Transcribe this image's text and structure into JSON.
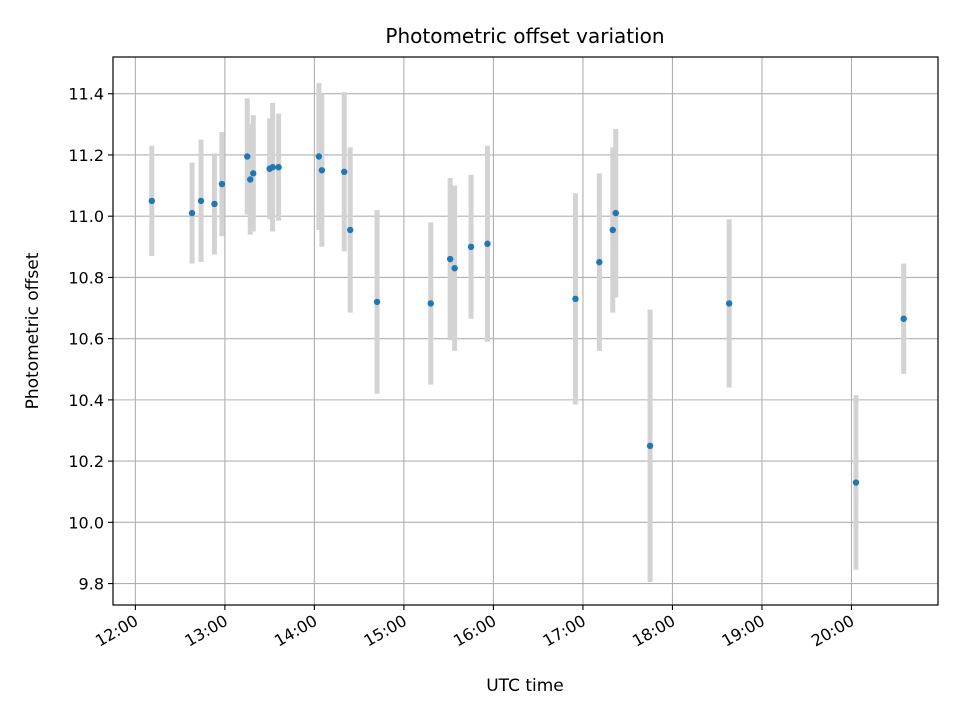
{
  "chart_data": {
    "type": "scatter",
    "title": "Photometric offset variation",
    "xlabel": "UTC time",
    "ylabel": "Photometric offset",
    "x_unit": "hours UTC",
    "xlim": [
      "11:45",
      "20:58"
    ],
    "ylim": [
      9.73,
      11.52
    ],
    "x_ticks": [
      "12:00",
      "13:00",
      "14:00",
      "15:00",
      "16:00",
      "17:00",
      "18:00",
      "19:00",
      "20:00"
    ],
    "y_ticks": [
      "9.8",
      "10.0",
      "10.2",
      "10.4",
      "10.6",
      "10.8",
      "11.0",
      "11.2",
      "11.4"
    ],
    "grid": true,
    "colors": {
      "point": "#1f77b4",
      "errorbar": "#d3d3d3",
      "grid": "#b0b0b0"
    },
    "points": [
      {
        "x": "12:11",
        "y": 11.05,
        "err": 0.18
      },
      {
        "x": "12:38",
        "y": 11.01,
        "err": 0.165
      },
      {
        "x": "12:44",
        "y": 11.05,
        "err": 0.2
      },
      {
        "x": "12:53",
        "y": 11.04,
        "err": 0.165
      },
      {
        "x": "12:58",
        "y": 11.105,
        "err": 0.17
      },
      {
        "x": "13:15",
        "y": 11.195,
        "err": 0.19
      },
      {
        "x": "13:17",
        "y": 11.12,
        "err": 0.18
      },
      {
        "x": "13:19",
        "y": 11.14,
        "err": 0.19
      },
      {
        "x": "13:30",
        "y": 11.155,
        "err": 0.165
      },
      {
        "x": "13:32",
        "y": 11.16,
        "err": 0.21
      },
      {
        "x": "13:36",
        "y": 11.16,
        "err": 0.175
      },
      {
        "x": "14:03",
        "y": 11.195,
        "err": 0.24
      },
      {
        "x": "14:05",
        "y": 11.15,
        "err": 0.25
      },
      {
        "x": "14:20",
        "y": 11.145,
        "err": 0.26
      },
      {
        "x": "14:24",
        "y": 10.955,
        "err": 0.27
      },
      {
        "x": "14:42",
        "y": 10.72,
        "err": 0.3
      },
      {
        "x": "15:18",
        "y": 10.715,
        "err": 0.265
      },
      {
        "x": "15:31",
        "y": 10.86,
        "err": 0.265
      },
      {
        "x": "15:34",
        "y": 10.83,
        "err": 0.27
      },
      {
        "x": "15:45",
        "y": 10.9,
        "err": 0.235
      },
      {
        "x": "15:56",
        "y": 10.91,
        "err": 0.32
      },
      {
        "x": "16:55",
        "y": 10.73,
        "err": 0.345
      },
      {
        "x": "17:11",
        "y": 10.85,
        "err": 0.29
      },
      {
        "x": "17:20",
        "y": 10.955,
        "err": 0.27
      },
      {
        "x": "17:22",
        "y": 11.01,
        "err": 0.275
      },
      {
        "x": "17:45",
        "y": 10.25,
        "err": 0.445
      },
      {
        "x": "18:38",
        "y": 10.715,
        "err": 0.275
      },
      {
        "x": "20:03",
        "y": 10.13,
        "err": 0.285
      },
      {
        "x": "20:35",
        "y": 10.665,
        "err": 0.18
      }
    ]
  }
}
